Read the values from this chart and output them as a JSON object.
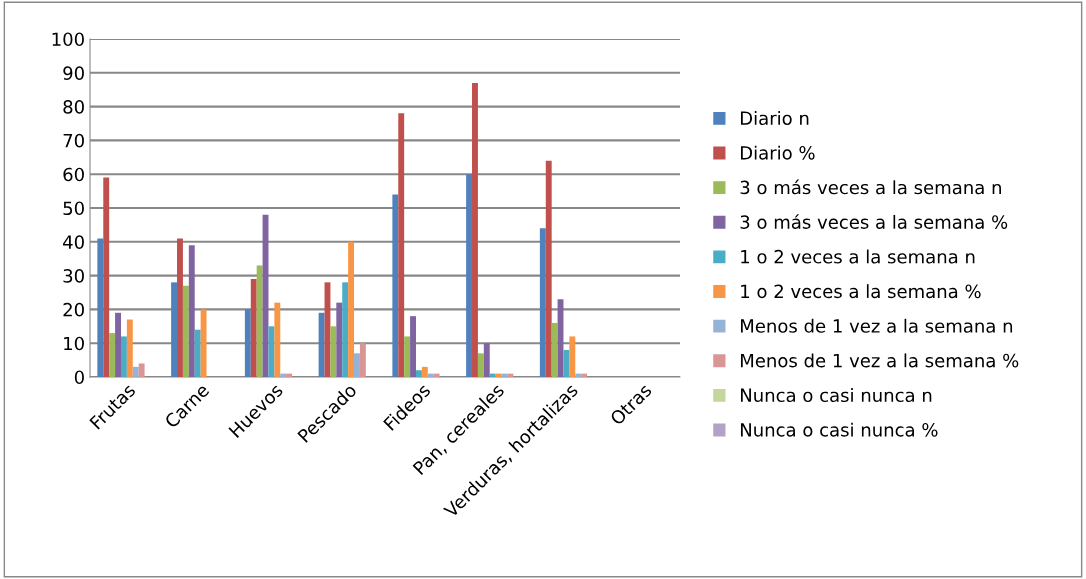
{
  "chart_data": {
    "type": "bar",
    "categories": [
      "Frutas",
      "Carne",
      "Huevos",
      "Pescado",
      "Fideos",
      "Pan, cereales",
      "Verduras, hortalizas",
      "Otras"
    ],
    "series": [
      {
        "name": "Diario n",
        "color": "#4f81bd",
        "values": [
          41,
          28,
          20,
          19,
          54,
          60,
          44,
          0
        ]
      },
      {
        "name": "Diario %",
        "color": "#c0504d",
        "values": [
          59,
          41,
          29,
          28,
          78,
          87,
          64,
          0
        ]
      },
      {
        "name": "3 o más veces a la semana n",
        "color": "#9bbb59",
        "values": [
          13,
          27,
          33,
          15,
          12,
          7,
          16,
          0
        ]
      },
      {
        "name": "3 o más veces a la semana %",
        "color": "#8064a2",
        "values": [
          19,
          39,
          48,
          22,
          18,
          10,
          23,
          0
        ]
      },
      {
        "name": "1 o 2 veces a la semana n",
        "color": "#4bacc6",
        "values": [
          12,
          14,
          15,
          28,
          2,
          1,
          8,
          0
        ]
      },
      {
        "name": "1 o 2 veces a la semana %",
        "color": "#f79646",
        "values": [
          17,
          20,
          22,
          40,
          3,
          1,
          12,
          0
        ]
      },
      {
        "name": "Menos de 1 vez a la semana n",
        "color": "#95b3d7",
        "values": [
          3,
          0,
          1,
          7,
          1,
          1,
          1,
          0
        ]
      },
      {
        "name": "Menos de 1 vez a la semana %",
        "color": "#d99694",
        "values": [
          4,
          0,
          1,
          10,
          1,
          1,
          1,
          0
        ]
      },
      {
        "name": "Nunca o casi nunca n",
        "color": "#c3d69b",
        "values": [
          0,
          0,
          0,
          0,
          0,
          0,
          0,
          0
        ]
      },
      {
        "name": "Nunca o casi nunca %",
        "color": "#b3a2c7",
        "values": [
          0,
          0,
          0,
          0,
          0,
          0,
          0,
          0
        ]
      }
    ],
    "ylim": [
      0,
      100
    ],
    "yticks": [
      0,
      10,
      20,
      30,
      40,
      50,
      60,
      70,
      80,
      90,
      100
    ],
    "grid": "y",
    "legend": "right"
  }
}
